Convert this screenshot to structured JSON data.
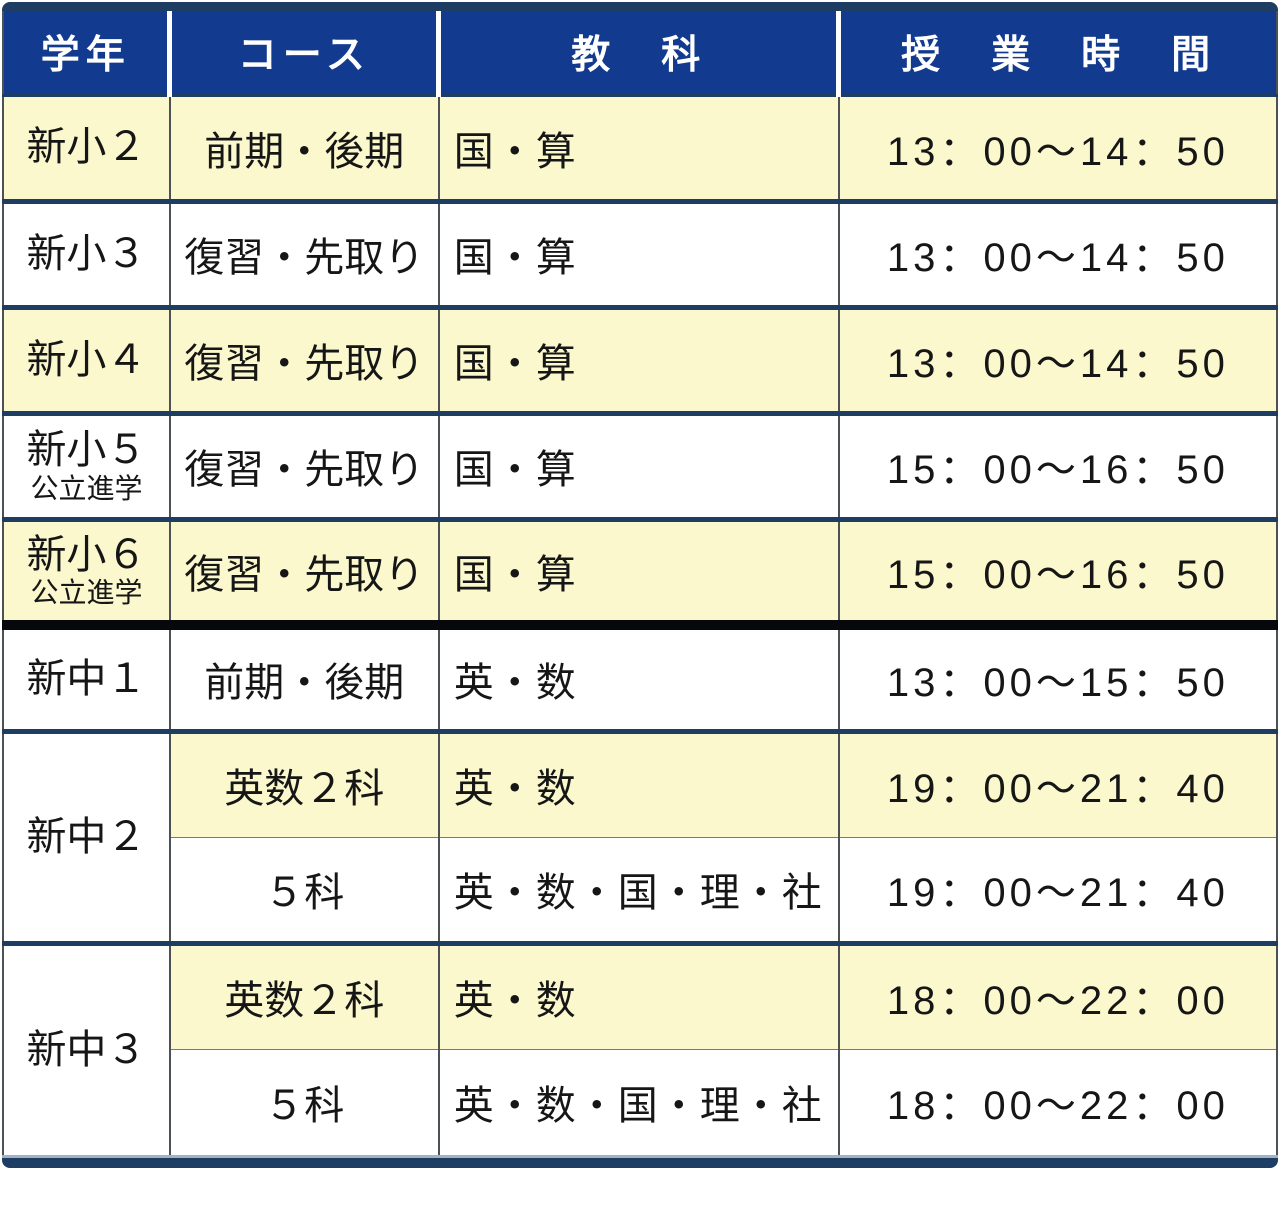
{
  "colors": {
    "header_bg": "#123a8f",
    "header_text": "#ffffff",
    "highlight": "#fbf8cd",
    "frame_navy": "#1e3d63",
    "separator_black": "#06080b",
    "grid_gray": "#4c5156",
    "bottom_edge": "#9fb2c8",
    "text": "#161616"
  },
  "table": {
    "headers": {
      "grade": "学年",
      "course": "コース",
      "subjects": "教　科",
      "time": "授　業　時　間"
    },
    "rows": [
      {
        "grade": "新小２",
        "course": "前期・後期",
        "subjects": "国・算",
        "time": "13：00～14：50"
      },
      {
        "grade": "新小３",
        "course": "復習・先取り",
        "subjects": "国・算",
        "time": "13：00～14：50"
      },
      {
        "grade": "新小４",
        "course": "復習・先取り",
        "subjects": "国・算",
        "time": "13：00～14：50"
      },
      {
        "grade": "新小５",
        "subgrade": "公立進学",
        "course": "復習・先取り",
        "subjects": "国・算",
        "time": "15：00～16：50"
      },
      {
        "grade": "新小６",
        "subgrade": "公立進学",
        "course": "復習・先取り",
        "subjects": "国・算",
        "time": "15：00～16：50"
      },
      {
        "grade": "新中１",
        "course": "前期・後期",
        "subjects": "英・数",
        "time": "13：00～15：50"
      },
      {
        "grade": "新中２",
        "course": "英数２科",
        "subjects": "英・数",
        "time": "19：00～21：40"
      },
      {
        "course": "５科",
        "subjects": "英・数・国・理・社",
        "time": "19：00～21：40"
      },
      {
        "grade": "新中３",
        "course": "英数２科",
        "subjects": "英・数",
        "time": "18：00～22：00"
      },
      {
        "course": "５科",
        "subjects": "英・数・国・理・社",
        "time": "18：00～22：00"
      }
    ]
  }
}
